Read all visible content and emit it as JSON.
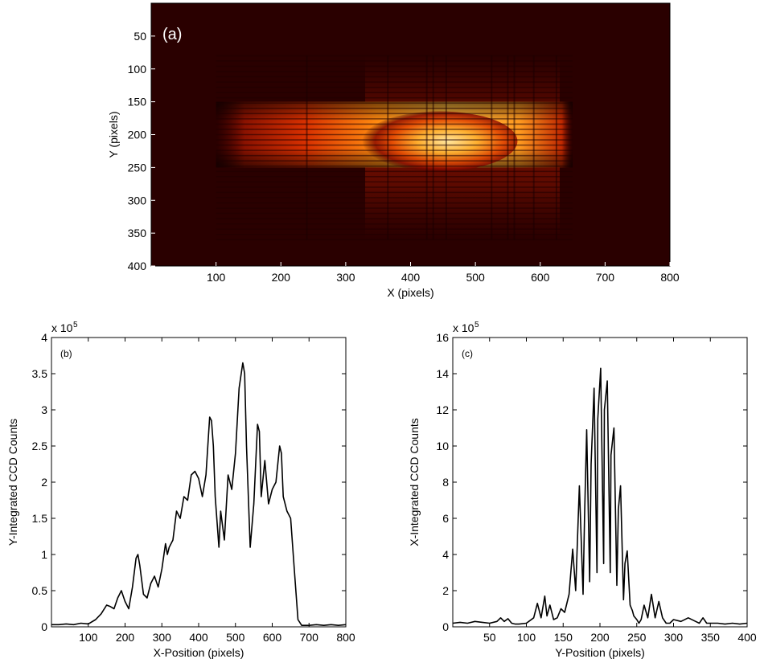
{
  "chart_data": [
    {
      "id": "a",
      "type": "heatmap",
      "panel_label": "(a)",
      "xlabel": "X (pixels)",
      "ylabel": "Y (pixels)",
      "xlim": [
        0,
        800
      ],
      "ylim": [
        400,
        0
      ],
      "xticks": [
        100,
        200,
        300,
        400,
        500,
        600,
        700,
        800
      ],
      "yticks": [
        50,
        100,
        150,
        200,
        250,
        300,
        350,
        400
      ],
      "colormap": "hot (black-red-yellow)",
      "background_color": "#2a0000",
      "bright_region": {
        "x": [
          100,
          650
        ],
        "y": [
          150,
          250
        ],
        "peak_x": [
          350,
          540
        ],
        "peak_y": 210
      },
      "faint_region": {
        "x": [
          330,
          630
        ],
        "y": [
          80,
          360
        ]
      },
      "column_fringes": [
        240,
        365,
        425,
        435,
        455,
        525,
        550,
        560,
        590,
        625
      ],
      "row_fringe_period": 8
    },
    {
      "id": "b",
      "type": "line",
      "panel_label": "(b)",
      "xlabel": "X-Position (pixels)",
      "ylabel": "Y-Integrated CCD Counts",
      "y_multiplier": "x 10",
      "y_exponent": "5",
      "xlim": [
        0,
        800
      ],
      "ylim": [
        0,
        4
      ],
      "xticks": [
        100,
        200,
        300,
        400,
        500,
        600,
        700,
        800
      ],
      "yticks": [
        0,
        0.5,
        1,
        1.5,
        2,
        2.5,
        3,
        3.5,
        4
      ],
      "ytick_labels": [
        "0",
        "0.5",
        "1",
        "1.5",
        "2",
        "2.5",
        "3",
        "3.5",
        "4"
      ],
      "x": [
        0,
        20,
        40,
        60,
        80,
        100,
        120,
        135,
        150,
        160,
        170,
        180,
        190,
        200,
        210,
        220,
        230,
        235,
        240,
        250,
        260,
        270,
        280,
        290,
        300,
        310,
        315,
        320,
        330,
        340,
        350,
        360,
        370,
        380,
        390,
        400,
        410,
        420,
        430,
        435,
        440,
        445,
        455,
        460,
        470,
        480,
        490,
        500,
        510,
        520,
        525,
        530,
        540,
        550,
        560,
        565,
        570,
        580,
        590,
        600,
        610,
        620,
        625,
        630,
        640,
        650,
        660,
        670,
        680,
        700,
        720,
        740,
        760,
        780,
        800
      ],
      "values": [
        0.03,
        0.03,
        0.04,
        0.03,
        0.05,
        0.04,
        0.1,
        0.18,
        0.3,
        0.28,
        0.25,
        0.4,
        0.5,
        0.35,
        0.25,
        0.55,
        0.95,
        1.0,
        0.85,
        0.45,
        0.4,
        0.6,
        0.7,
        0.55,
        0.8,
        1.15,
        1.0,
        1.1,
        1.2,
        1.6,
        1.5,
        1.8,
        1.75,
        2.1,
        2.15,
        2.05,
        1.8,
        2.1,
        2.9,
        2.85,
        2.5,
        1.8,
        1.1,
        1.6,
        1.2,
        2.1,
        1.9,
        2.4,
        3.3,
        3.65,
        3.5,
        2.5,
        1.1,
        1.7,
        2.8,
        2.7,
        1.8,
        2.3,
        1.7,
        1.9,
        2.0,
        2.5,
        2.4,
        1.8,
        1.6,
        1.5,
        0.8,
        0.1,
        0.02,
        0.02,
        0.03,
        0.02,
        0.03,
        0.02,
        0.03
      ]
    },
    {
      "id": "c",
      "type": "line",
      "panel_label": "(c)",
      "xlabel": "Y-Position (pixels)",
      "ylabel": "X-Integrated CCD Counts",
      "y_multiplier": "x 10",
      "y_exponent": "5",
      "xlim": [
        0,
        400
      ],
      "ylim": [
        0,
        16
      ],
      "xticks": [
        50,
        100,
        150,
        200,
        250,
        300,
        350,
        400
      ],
      "yticks": [
        0,
        2,
        4,
        6,
        8,
        10,
        12,
        14,
        16
      ],
      "ytick_labels": [
        "0",
        "2",
        "4",
        "6",
        "8",
        "10",
        "12",
        "14",
        "16"
      ],
      "x": [
        0,
        10,
        20,
        30,
        40,
        50,
        60,
        65,
        70,
        75,
        80,
        85,
        90,
        100,
        110,
        115,
        120,
        125,
        128,
        132,
        137,
        142,
        147,
        152,
        158,
        163,
        167,
        172,
        177,
        179,
        182,
        186,
        188,
        192,
        196,
        197,
        201,
        205,
        206,
        210,
        214,
        215,
        219,
        223,
        225,
        228,
        232,
        234,
        237,
        241,
        244,
        246,
        250,
        253,
        256,
        260,
        265,
        270,
        275,
        280,
        285,
        290,
        295,
        300,
        310,
        320,
        330,
        335,
        340,
        345,
        350,
        360,
        370,
        380,
        390,
        400
      ],
      "values": [
        0.2,
        0.25,
        0.2,
        0.3,
        0.25,
        0.2,
        0.3,
        0.5,
        0.3,
        0.45,
        0.2,
        0.15,
        0.15,
        0.2,
        0.5,
        1.3,
        0.5,
        1.7,
        0.6,
        1.2,
        0.4,
        0.5,
        1.0,
        0.8,
        1.8,
        4.3,
        2.0,
        7.8,
        1.8,
        6.0,
        10.9,
        2.5,
        9.0,
        13.2,
        3.0,
        11.5,
        14.3,
        3.5,
        12.0,
        13.6,
        3.0,
        9.5,
        11.0,
        2.3,
        6.5,
        7.8,
        1.5,
        3.5,
        4.2,
        1.2,
        0.9,
        0.6,
        0.4,
        0.2,
        0.4,
        1.2,
        0.5,
        1.8,
        0.5,
        1.4,
        0.5,
        0.2,
        0.2,
        0.4,
        0.3,
        0.5,
        0.3,
        0.2,
        0.5,
        0.2,
        0.2,
        0.2,
        0.15,
        0.2,
        0.15,
        0.2
      ]
    }
  ]
}
